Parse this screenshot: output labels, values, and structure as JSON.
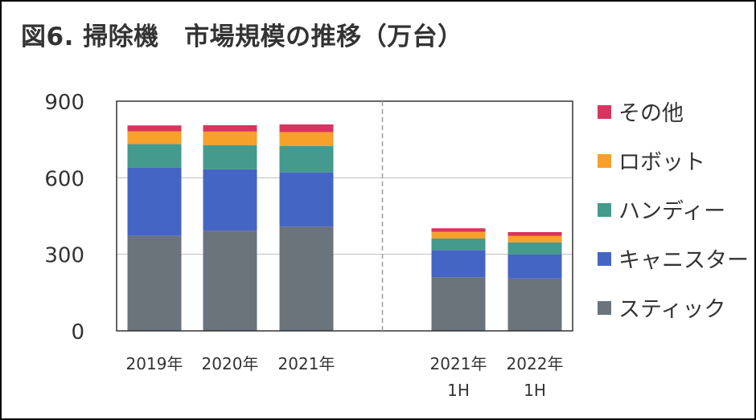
{
  "chart_data": {
    "type": "bar",
    "stacked": true,
    "title": "図6. 掃除機　市場規模の推移（万台）",
    "xlabel": "",
    "ylabel": "",
    "ylim": [
      0,
      900
    ],
    "yticks": [
      0,
      300,
      600,
      900
    ],
    "grid": true,
    "legend_position": "right",
    "groups": [
      {
        "categories": [
          {
            "id": "2019",
            "lines": [
              "2019年"
            ]
          },
          {
            "id": "2020",
            "lines": [
              "2020年"
            ]
          },
          {
            "id": "2021",
            "lines": [
              "2021年"
            ]
          }
        ]
      },
      {
        "categories": [
          {
            "id": "2021-1h",
            "lines": [
              "2021年",
              "1H"
            ]
          },
          {
            "id": "2022-1h",
            "lines": [
              "2022年",
              "1H"
            ]
          }
        ]
      }
    ],
    "series": [
      {
        "name": "スティック",
        "color": "#6b737b",
        "values": [
          372,
          393,
          408,
          210,
          205
        ]
      },
      {
        "name": "キャニスター",
        "color": "#4565c4",
        "values": [
          267,
          240,
          213,
          107,
          95
        ]
      },
      {
        "name": "ハンディー",
        "color": "#449a8c",
        "values": [
          93,
          95,
          103,
          45,
          47
        ]
      },
      {
        "name": "ロボット",
        "color": "#f7a02a",
        "values": [
          50,
          53,
          55,
          26,
          25
        ]
      },
      {
        "name": "その他",
        "color": "#d9345f",
        "values": [
          23,
          25,
          30,
          14,
          15
        ]
      }
    ]
  }
}
